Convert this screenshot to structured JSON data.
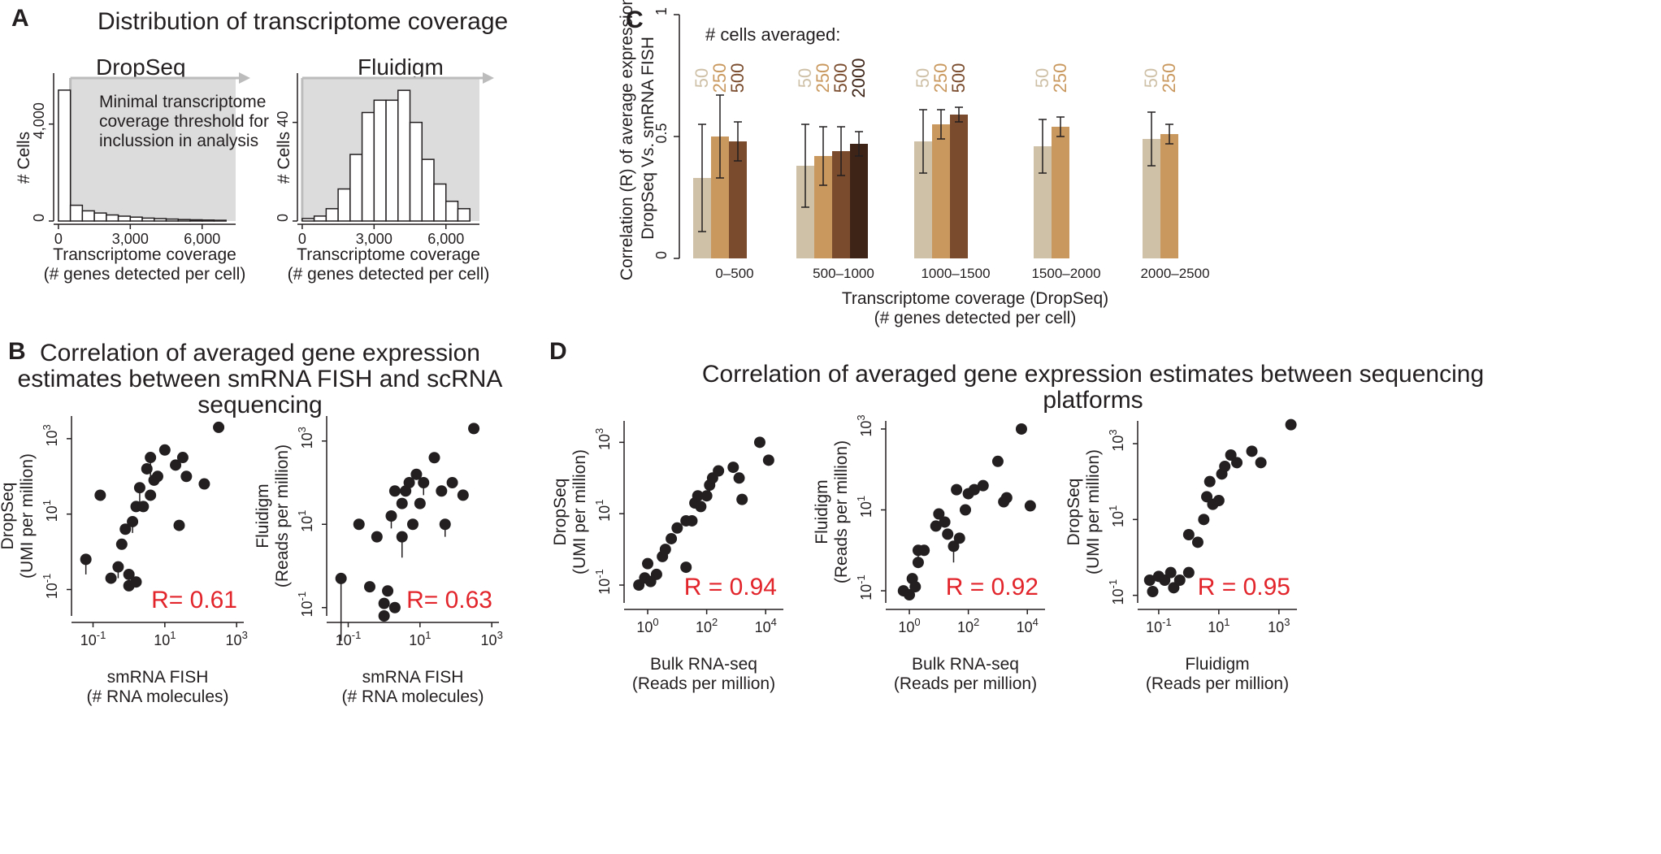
{
  "figure": {
    "colors": {
      "ink": "#231f20",
      "red": "#e2242b",
      "shade": "#dcdcdc",
      "arrow": "#bcbcbc"
    }
  },
  "panelA": {
    "label": "A",
    "title": "Distribution of transcriptome coverage",
    "dropseq": {
      "title": "DropSeq",
      "annotation": [
        "Minimal transcriptome",
        "coverage threshold for",
        "inclussion in analysis"
      ]
    },
    "fluidigm": {
      "title": "Fluidigm"
    },
    "xlabel": [
      "Transcriptome coverage",
      "(# genes detected per cell)"
    ],
    "ylabel": "# Cells"
  },
  "panelB": {
    "label": "B",
    "title": [
      "Correlation of averaged gene expression",
      "estimates between smRNA FISH and scRNA",
      "sequencing"
    ]
  },
  "panelC": {
    "label": "C",
    "legend_title": "# cells averaged:",
    "ylabel": [
      "Correlation (R) of average expression",
      "DropSeq Vs. smRNA FISH"
    ],
    "xlabel": [
      "Transcriptome coverage (DropSeq)",
      "(# genes detected per cell)"
    ]
  },
  "panelD": {
    "label": "D",
    "title": [
      "Correlation of averaged gene expression estimates between sequencing",
      "platforms"
    ]
  },
  "chart_data": [
    {
      "id": "A1",
      "type": "bar",
      "title": "DropSeq",
      "xlabel": "Transcriptome coverage (# genes detected per cell)",
      "ylabel": "# Cells",
      "bin_width": 500,
      "bins_start": [
        0,
        500,
        1000,
        1500,
        2000,
        2500,
        3000,
        3500,
        4000,
        4500,
        5000,
        5500,
        6000,
        6500
      ],
      "values": [
        5400,
        650,
        420,
        330,
        250,
        200,
        160,
        120,
        100,
        80,
        60,
        50,
        40,
        30
      ],
      "xlim": [
        -200,
        7400
      ],
      "ylim": [
        0,
        5900
      ],
      "xticks": [
        0,
        3000,
        6000
      ],
      "xtick_labels": [
        "0",
        "3,000",
        "6,000"
      ],
      "yticks": [
        0,
        4000
      ],
      "ytick_labels": [
        "0",
        "4,000"
      ],
      "shaded_from": 500
    },
    {
      "id": "A2",
      "type": "bar",
      "title": "Fluidigm",
      "xlabel": "Transcriptome coverage (# genes detected per cell)",
      "ylabel": "# Cells",
      "bin_width": 500,
      "bins_start": [
        0,
        500,
        1000,
        1500,
        2000,
        2500,
        3000,
        3500,
        4000,
        4500,
        5000,
        5500,
        6000,
        6500
      ],
      "values": [
        1,
        2,
        5,
        13,
        27,
        44,
        49,
        49,
        53,
        40,
        25,
        15,
        8,
        5
      ],
      "xlim": [
        -200,
        7400
      ],
      "ylim": [
        0,
        58
      ],
      "xticks": [
        0,
        3000,
        6000
      ],
      "xtick_labels": [
        "0",
        "3,000",
        "6,000"
      ],
      "yticks": [
        0,
        40
      ],
      "ytick_labels": [
        "0",
        "40"
      ],
      "shaded_from": 0
    },
    {
      "id": "B1",
      "type": "scatter",
      "xlabel": "smRNA FISH (# RNA molecules)",
      "ylabel": "DropSeq (UMI per million)",
      "xlog": true,
      "ylog": true,
      "xlim": [
        -1.6,
        3.2
      ],
      "ylim": [
        -1.7,
        3.6
      ],
      "xticks": [
        "10^-1",
        "10^1",
        "10^3"
      ],
      "yticks": [
        "10^-1",
        "10^1",
        "10^3"
      ],
      "annotation": "R= 0.61",
      "points": [
        [
          -1.2,
          -0.2,
          0.4
        ],
        [
          -0.8,
          1.5,
          0
        ],
        [
          -0.5,
          -0.7,
          0
        ],
        [
          -0.3,
          -0.4,
          0.3
        ],
        [
          -0.2,
          0.2,
          0
        ],
        [
          -0.1,
          0.6,
          0
        ],
        [
          0,
          -0.6,
          0
        ],
        [
          0,
          -0.9,
          0
        ],
        [
          0.1,
          0.8,
          0.3
        ],
        [
          0.2,
          -0.8,
          0
        ],
        [
          0.2,
          1.2,
          0
        ],
        [
          0.3,
          1.7,
          0.4
        ],
        [
          0.4,
          1.2,
          0
        ],
        [
          0.5,
          2.2,
          0
        ],
        [
          0.6,
          1.5,
          0
        ],
        [
          0.6,
          2.5,
          0.5
        ],
        [
          0.7,
          1.9,
          0
        ],
        [
          0.8,
          2.0,
          0.2
        ],
        [
          1,
          2.7,
          0
        ],
        [
          1.3,
          2.3,
          0
        ],
        [
          1.4,
          0.7,
          0
        ],
        [
          1.5,
          2.5,
          0
        ],
        [
          1.6,
          2.0,
          0
        ],
        [
          2.1,
          1.8,
          0
        ],
        [
          2.5,
          3.3,
          0
        ]
      ]
    },
    {
      "id": "B2",
      "type": "scatter",
      "xlabel": "smRNA FISH (# RNA molecules)",
      "ylabel": "Fluidigm (Reads per million)",
      "xlog": true,
      "ylog": true,
      "xlim": [
        -1.6,
        3.2
      ],
      "ylim": [
        -1.2,
        3.6
      ],
      "xticks": [
        "10^-1",
        "10^1",
        "10^3"
      ],
      "yticks": [
        "10^-1",
        "10^1",
        "10^3"
      ],
      "annotation": "R= 0.63",
      "points": [
        [
          -1.2,
          -0.3,
          1.5
        ],
        [
          -0.7,
          1.0,
          0
        ],
        [
          -0.4,
          -0.5,
          0
        ],
        [
          -0.2,
          0.7,
          0
        ],
        [
          0,
          -0.9,
          0
        ],
        [
          0,
          -1.2,
          0
        ],
        [
          0.1,
          -0.6,
          0
        ],
        [
          0.2,
          1.2,
          0.3
        ],
        [
          0.3,
          1.8,
          0
        ],
        [
          0.3,
          -1.0,
          0
        ],
        [
          0.5,
          0.7,
          0.5
        ],
        [
          0.5,
          1.5,
          0
        ],
        [
          0.6,
          1.8,
          0
        ],
        [
          0.7,
          2.0,
          0
        ],
        [
          0.8,
          1.0,
          0
        ],
        [
          0.9,
          2.2,
          0
        ],
        [
          1,
          1.5,
          0
        ],
        [
          1.1,
          2.0,
          0.3
        ],
        [
          1.4,
          2.6,
          0
        ],
        [
          1.6,
          1.8,
          0
        ],
        [
          1.7,
          1.0,
          0.3
        ],
        [
          1.9,
          2.0,
          0
        ],
        [
          2.2,
          1.7,
          0
        ],
        [
          2.5,
          3.3,
          0
        ]
      ]
    },
    {
      "id": "C",
      "type": "bar",
      "ylabel": "Correlation (R) of average expression DropSeq Vs. smRNA FISH",
      "xlabel": "Transcriptome coverage (DropSeq) (# genes detected per cell)",
      "ylim": [
        0,
        1
      ],
      "yticks": [
        0,
        0.5,
        1
      ],
      "ytick_labels": [
        "0",
        "0.5",
        "1"
      ],
      "categories": [
        "0–500",
        "500–1000",
        "1000–1500",
        "1500–2000",
        "2000–2500"
      ],
      "series": [
        {
          "name": "50",
          "color": "#cfc1a8",
          "values": [
            0.33,
            0.38,
            0.48,
            0.46,
            0.49
          ],
          "errors": [
            0.22,
            0.17,
            0.13,
            0.11,
            0.11
          ]
        },
        {
          "name": "250",
          "color": "#c9985e",
          "values": [
            0.5,
            0.42,
            0.55,
            0.54,
            0.51
          ],
          "errors": [
            0.17,
            0.12,
            0.06,
            0.04,
            0.04
          ]
        },
        {
          "name": "500",
          "color": "#7a4c2d",
          "values": [
            0.48,
            0.44,
            0.59,
            null,
            null
          ],
          "errors": [
            0.08,
            0.1,
            0.03,
            null,
            null
          ]
        },
        {
          "name": "2000",
          "color": "#3e2416",
          "values": [
            null,
            0.47,
            null,
            null,
            null
          ],
          "errors": [
            null,
            0.05,
            null,
            null,
            null
          ]
        }
      ]
    },
    {
      "id": "D1",
      "type": "scatter",
      "xlabel": "Bulk RNA-seq (Reads per million)",
      "ylabel": "DropSeq (UMI per million)",
      "xlog": true,
      "ylog": true,
      "xlim": [
        -0.8,
        4.6
      ],
      "ylim": [
        -1.5,
        3.6
      ],
      "xticks": [
        "10^0",
        "10^2",
        "10^4"
      ],
      "yticks": [
        "10^-1",
        "10^1",
        "10^3"
      ],
      "annotation": "R = 0.94",
      "points": [
        [
          -0.3,
          -1.0,
          0
        ],
        [
          -0.1,
          -0.8,
          0
        ],
        [
          0,
          -0.4,
          0
        ],
        [
          0.1,
          -0.9,
          0
        ],
        [
          0.3,
          -0.7,
          0
        ],
        [
          0.5,
          -0.2,
          0
        ],
        [
          0.6,
          0,
          0
        ],
        [
          0.8,
          0.3,
          0
        ],
        [
          1,
          0.6,
          0
        ],
        [
          1.3,
          0.8,
          0
        ],
        [
          1.3,
          -0.5,
          0
        ],
        [
          1.5,
          0.8,
          0
        ],
        [
          1.6,
          1.3,
          0
        ],
        [
          1.7,
          1.5,
          0
        ],
        [
          1.8,
          1.2,
          0
        ],
        [
          2,
          1.5,
          0
        ],
        [
          2.1,
          1.8,
          0.3
        ],
        [
          2.2,
          2.0,
          0
        ],
        [
          2.4,
          2.2,
          0
        ],
        [
          2.9,
          2.3,
          0
        ],
        [
          3.1,
          2.0,
          0
        ],
        [
          3.2,
          1.4,
          0
        ],
        [
          3.8,
          3.0,
          0
        ],
        [
          4.1,
          2.5,
          0
        ]
      ]
    },
    {
      "id": "D2",
      "type": "scatter",
      "xlabel": "Bulk RNA-seq (Reads per million)",
      "ylabel": "Fluidigm (Reads per million)",
      "xlog": true,
      "ylog": true,
      "xlim": [
        -0.8,
        4.6
      ],
      "ylim": [
        -1.3,
        3.2
      ],
      "xticks": [
        "10^0",
        "10^2",
        "10^4"
      ],
      "yticks": [
        "10^-1",
        "10^1",
        "10^3"
      ],
      "annotation": "R = 0.92",
      "points": [
        [
          -0.2,
          -1.0,
          0
        ],
        [
          0,
          -1.1,
          0
        ],
        [
          0.1,
          -0.7,
          0
        ],
        [
          0.2,
          -0.9,
          0
        ],
        [
          0.3,
          -0.3,
          0
        ],
        [
          0.3,
          0,
          0.2
        ],
        [
          0.5,
          0,
          0
        ],
        [
          0.9,
          0.6,
          0
        ],
        [
          1,
          0.9,
          0
        ],
        [
          1.2,
          0.7,
          0
        ],
        [
          1.3,
          0.4,
          0
        ],
        [
          1.5,
          0.1,
          0.4
        ],
        [
          1.6,
          1.5,
          0
        ],
        [
          1.7,
          0.3,
          0
        ],
        [
          1.9,
          1.0,
          0
        ],
        [
          2,
          1.4,
          0
        ],
        [
          2.2,
          1.5,
          0
        ],
        [
          2.5,
          1.6,
          0
        ],
        [
          3,
          2.2,
          0
        ],
        [
          3.2,
          1.2,
          0
        ],
        [
          3.3,
          1.3,
          0
        ],
        [
          3.8,
          3.0,
          0
        ],
        [
          4.1,
          1.1,
          0
        ]
      ]
    },
    {
      "id": "D3",
      "type": "scatter",
      "xlabel": "Fluidigm (Reads per million)",
      "ylabel": "DropSeq (UMI per million)",
      "xlog": true,
      "ylog": true,
      "xlim": [
        -1.7,
        3.6
      ],
      "ylim": [
        -1.2,
        3.6
      ],
      "xticks": [
        "10^-1",
        "10^1",
        "10^3"
      ],
      "yticks": [
        "10^-1",
        "10^1",
        "10^3"
      ],
      "annotation": "R = 0.95",
      "points": [
        [
          -1.3,
          -0.6,
          0
        ],
        [
          -1.2,
          -0.9,
          0
        ],
        [
          -1,
          -0.5,
          0
        ],
        [
          -0.8,
          -0.6,
          0
        ],
        [
          -0.6,
          -0.4,
          0
        ],
        [
          -0.5,
          -0.8,
          0
        ],
        [
          -0.3,
          -0.6,
          0
        ],
        [
          0,
          -0.4,
          0
        ],
        [
          0,
          0.6,
          0
        ],
        [
          0.3,
          0.4,
          0
        ],
        [
          0.5,
          1.0,
          0
        ],
        [
          0.6,
          1.6,
          0
        ],
        [
          0.7,
          2.0,
          0
        ],
        [
          0.8,
          1.4,
          0
        ],
        [
          1,
          1.5,
          0
        ],
        [
          1.1,
          2.2,
          0
        ],
        [
          1.2,
          2.4,
          0
        ],
        [
          1.4,
          2.7,
          0
        ],
        [
          1.6,
          2.5,
          0
        ],
        [
          2.1,
          2.8,
          0
        ],
        [
          2.4,
          2.5,
          0
        ],
        [
          3.4,
          3.5,
          0
        ]
      ]
    }
  ]
}
